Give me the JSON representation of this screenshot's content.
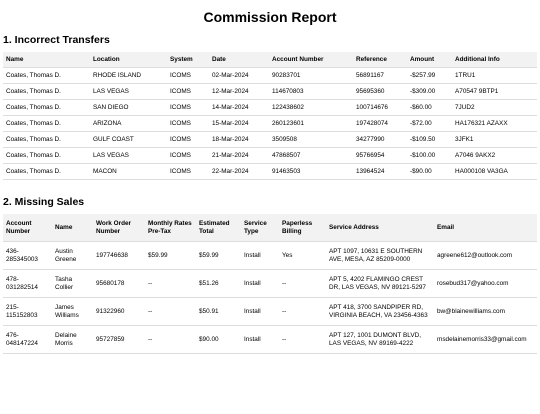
{
  "header": {
    "title": "Commission Report"
  },
  "sections": [
    {
      "heading": "1. Incorrect Transfers",
      "table": {
        "columns": [
          "Name",
          "Location",
          "System",
          "Date",
          "Account Number",
          "Reference",
          "Amount",
          "Additional Info"
        ],
        "rows": [
          [
            "Coates, Thomas D.",
            "RHODE ISLAND",
            "ICOMS",
            "02-Mar-2024",
            "90283701",
            "56891167",
            "-$257.99",
            "1TRU1"
          ],
          [
            "Coates, Thomas D.",
            "LAS VEGAS",
            "ICOMS",
            "12-Mar-2024",
            "114670803",
            "95695360",
            "-$309.00",
            "A70547 9BTP1"
          ],
          [
            "Coates, Thomas D.",
            "SAN DIEGO",
            "ICOMS",
            "14-Mar-2024",
            "122438602",
            "100714676",
            "-$60.00",
            "7JUD2"
          ],
          [
            "Coates, Thomas D.",
            "ARIZONA",
            "ICOMS",
            "15-Mar-2024",
            "260123601",
            "197428074",
            "-$72.00",
            "HA176321 AZAXX"
          ],
          [
            "Coates, Thomas D.",
            "GULF COAST",
            "ICOMS",
            "18-Mar-2024",
            "3509508",
            "34277990",
            "-$109.50",
            "3JFK1"
          ],
          [
            "Coates, Thomas D.",
            "LAS VEGAS",
            "ICOMS",
            "21-Mar-2024",
            "47868507",
            "95766954",
            "-$100.00",
            "A7046 9AKX2"
          ],
          [
            "Coates, Thomas D.",
            "MACON",
            "ICOMS",
            "22-Mar-2024",
            "91463503",
            "13964524",
            "-$90.00",
            "HA000108 VA3GA"
          ]
        ]
      }
    },
    {
      "heading": "2. Missing Sales",
      "table": {
        "columns": [
          "Account Number",
          "Name",
          "Work Order Number",
          "Monthly Rates Pre-Tax",
          "Estimated Total",
          "Service Type",
          "Paperless Billing",
          "Service Address",
          "Email"
        ],
        "rows": [
          [
            "436-285345003",
            "Austin Greene",
            "197746638",
            "$59.99",
            "$59.99",
            "Install",
            "Yes",
            "APT 1097, 10631 E SOUTHERN AVE, MESA, AZ 85209-0000",
            "agreene612@outlook.com"
          ],
          [
            "478-031282514",
            "Tasha Collier",
            "95680178",
            "--",
            "$51.26",
            "Install",
            "--",
            "APT 5, 4202 FLAMINGO CREST DR, LAS VEGAS, NV 89121-5297",
            "rosebud317@yahoo.com"
          ],
          [
            "215-115152803",
            "James Williams",
            "91322960",
            "--",
            "$50.91",
            "Install",
            "--",
            "APT 418, 3700 SANDPIPER RD, VIRGINIA BEACH, VA 23456-4363",
            "bw@blainewilliams.com"
          ],
          [
            "476-048147224",
            "Delaine Morris",
            "95727859",
            "--",
            "$90.00",
            "Install",
            "--",
            "APT 127, 1001 DUMONT BLVD, LAS VEGAS, NV 89169-4222",
            "msdelainemorris33@gmail.com"
          ]
        ]
      }
    }
  ]
}
